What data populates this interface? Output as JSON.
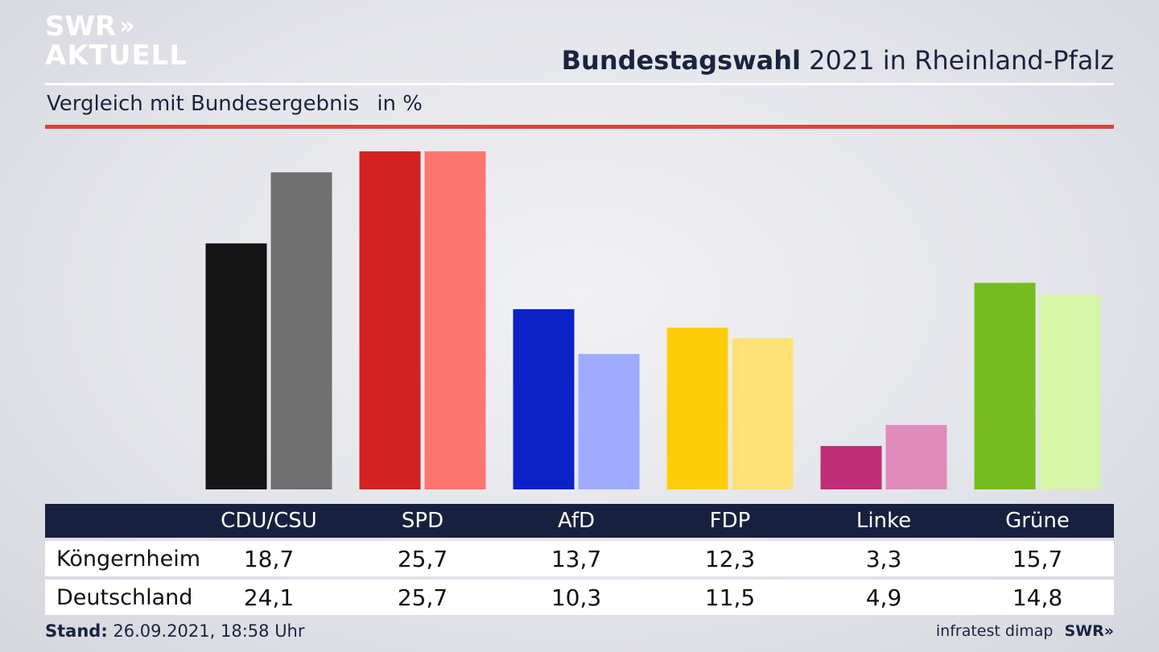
{
  "logo": {
    "line1": "SWR",
    "line2": "AKTUELL",
    "chevrons": "»"
  },
  "header": {
    "title_bold": "Bundestagswahl",
    "title_rest": "2021 in Rheinland-Pfalz"
  },
  "subtitle": {
    "text": "Vergleich mit Bundesergebnis",
    "unit": "in %"
  },
  "chart_data": {
    "type": "bar",
    "categories": [
      "CDU/CSU",
      "SPD",
      "AfD",
      "FDP",
      "Linke",
      "Grüne"
    ],
    "series": [
      {
        "name": "Köngernheim",
        "values": [
          18.7,
          25.7,
          13.7,
          12.3,
          3.3,
          15.7
        ],
        "display": [
          "18,7",
          "25,7",
          "13,7",
          "12,3",
          "3,3",
          "15,7"
        ]
      },
      {
        "name": "Deutschland",
        "values": [
          24.1,
          25.7,
          10.3,
          11.5,
          4.9,
          14.8
        ],
        "display": [
          "24,1",
          "25,7",
          "10,3",
          "11,5",
          "4,9",
          "14,8"
        ]
      }
    ],
    "colors": [
      [
        "#141414",
        "#717070"
      ],
      [
        "#d42222",
        "#ff7670"
      ],
      [
        "#0a22c8",
        "#9eacff"
      ],
      [
        "#ffcc0a",
        "#ffe176"
      ],
      [
        "#be2e78",
        "#df8cbd"
      ],
      [
        "#77bc1f",
        "#d6f5a9"
      ]
    ],
    "ylim": [
      0,
      25.7
    ]
  },
  "footer": {
    "stand_label": "Stand:",
    "stand_value": "26.09.2021, 18:58 Uhr",
    "source": "infratest dimap",
    "brand": "SWR",
    "brand_chevrons": "»"
  }
}
